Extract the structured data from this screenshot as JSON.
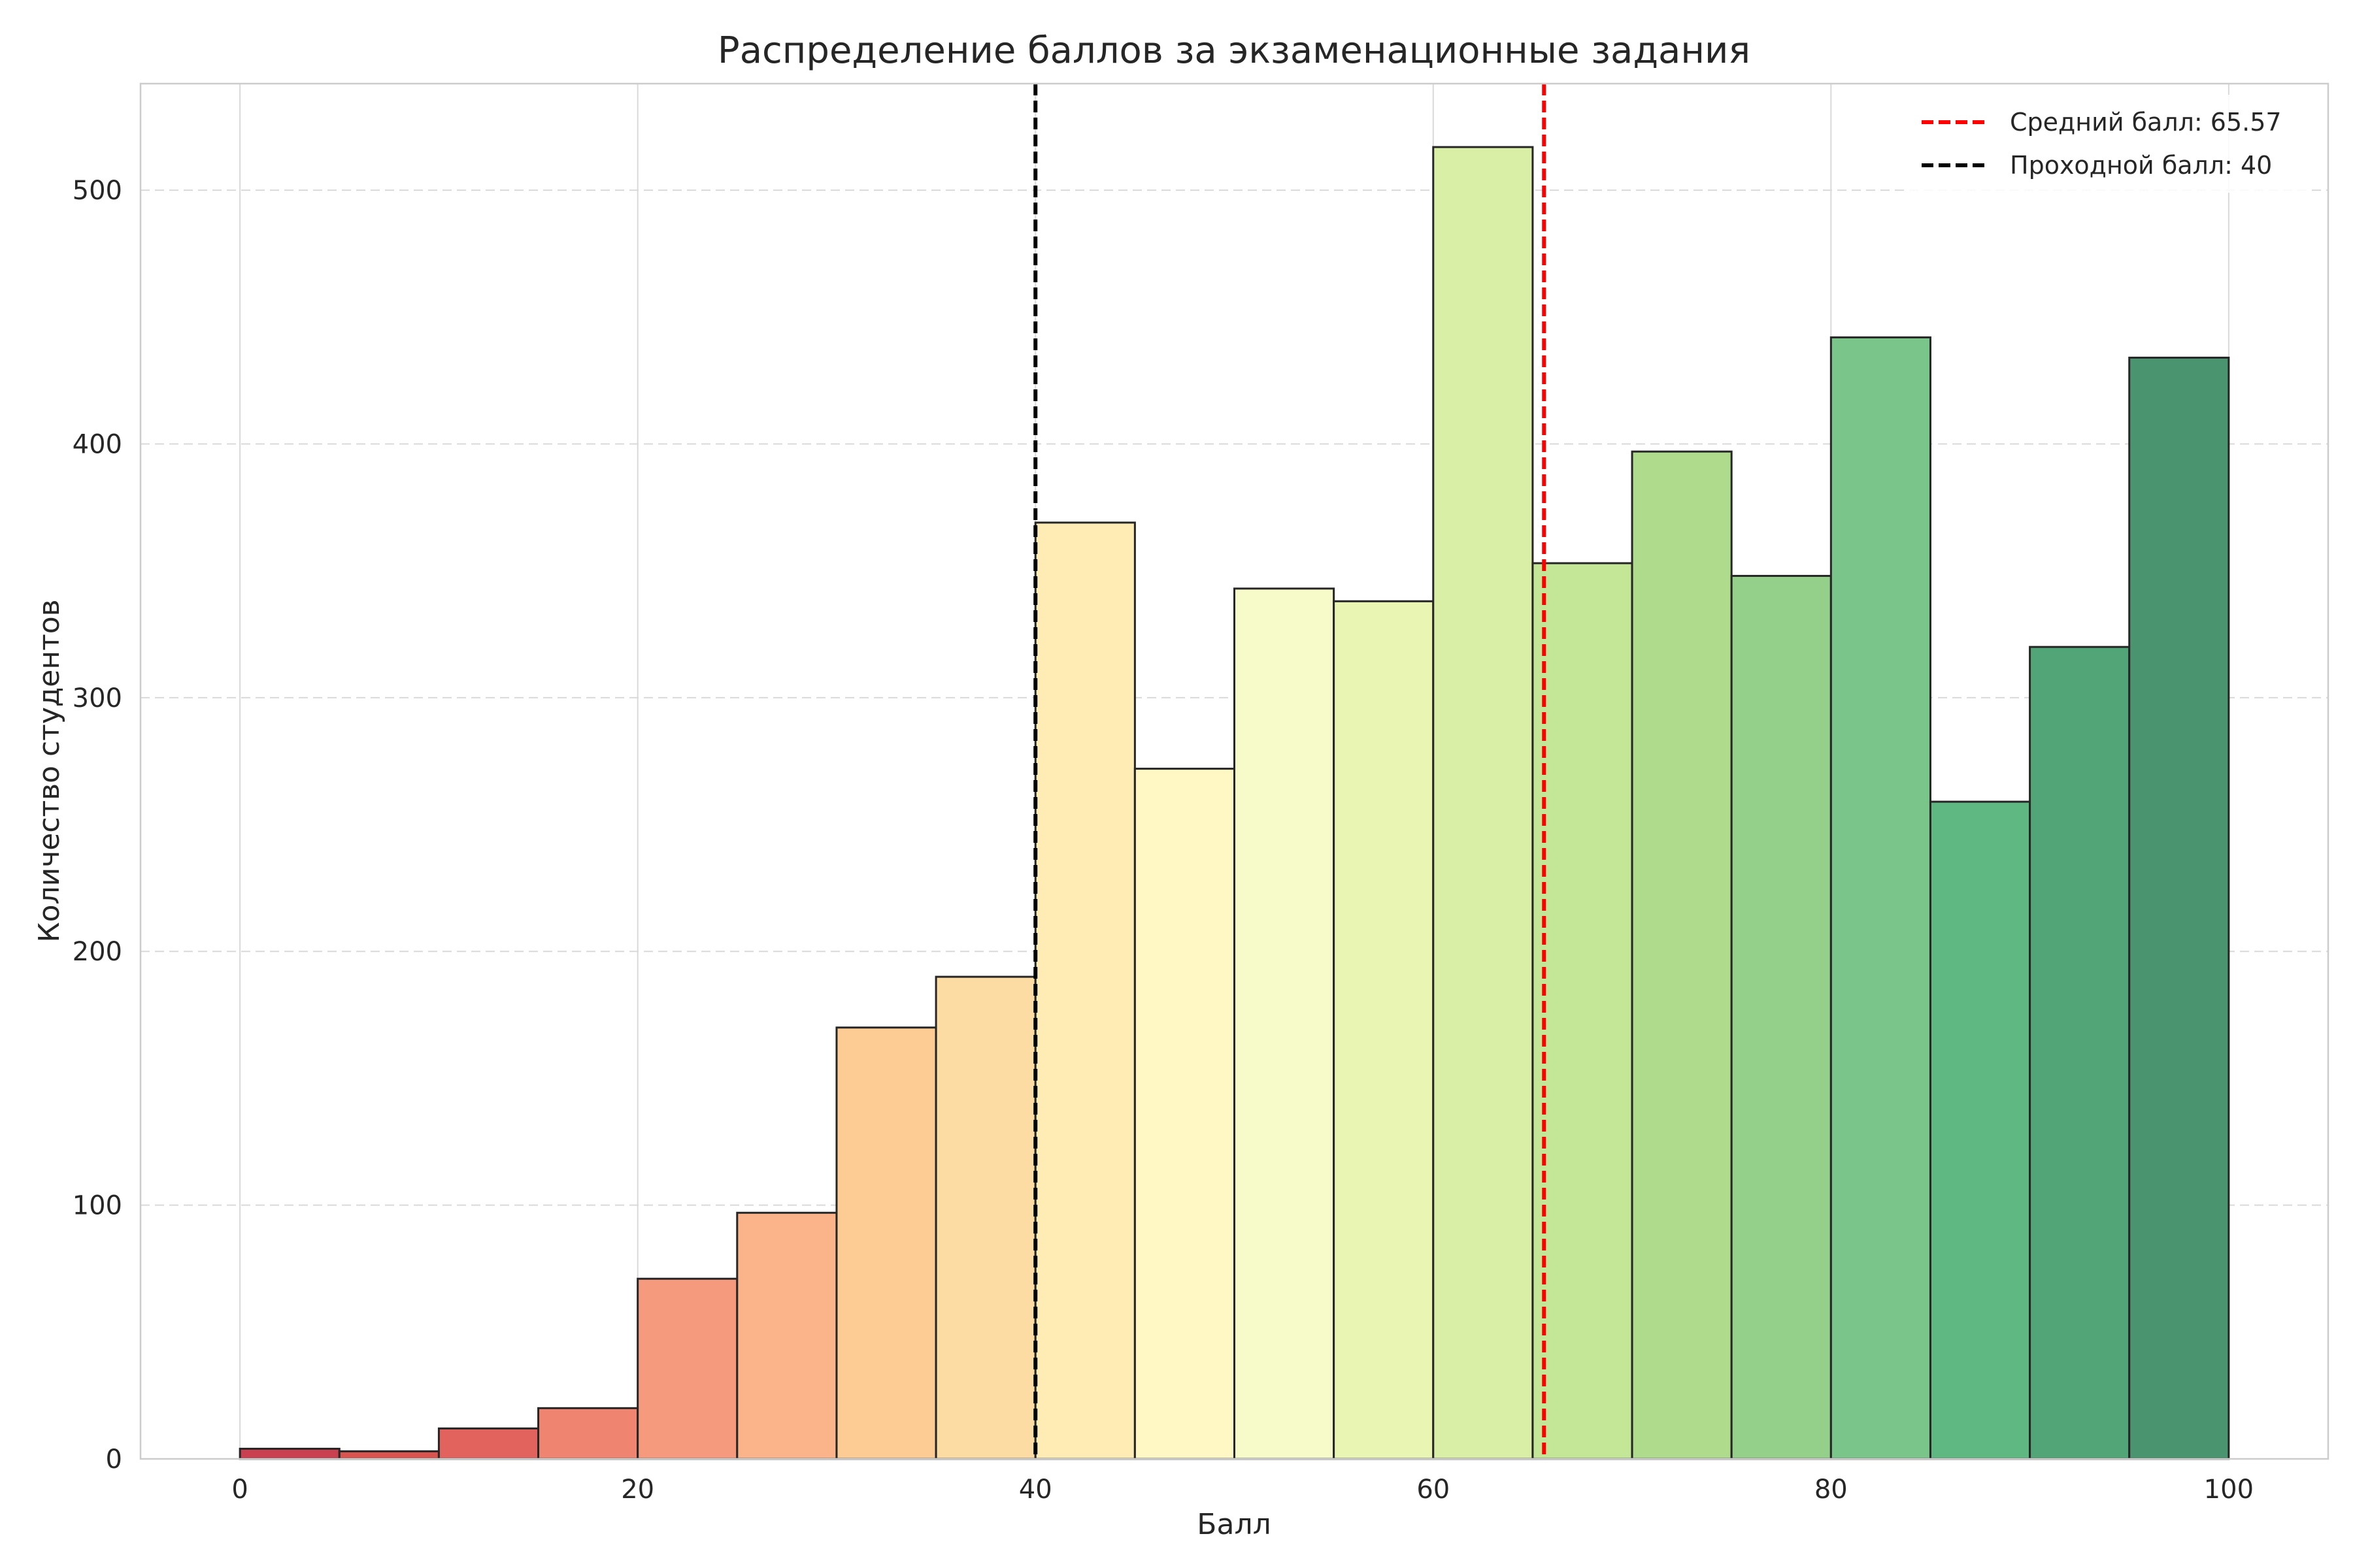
{
  "chart_data": {
    "type": "bar",
    "title": "Распределение баллов за экзаменационные задания",
    "xlabel": "Балл",
    "ylabel": "Количество студентов",
    "xlim": [
      -5,
      105
    ],
    "ylim": [
      0,
      542
    ],
    "x_ticks": [
      0,
      20,
      40,
      60,
      80,
      100
    ],
    "y_ticks": [
      0,
      100,
      200,
      300,
      400,
      500
    ],
    "grid": true,
    "legend_position": "top-right",
    "bins": [
      {
        "start": 0,
        "end": 5,
        "value": 4
      },
      {
        "start": 5,
        "end": 10,
        "value": 3
      },
      {
        "start": 10,
        "end": 15,
        "value": 12
      },
      {
        "start": 15,
        "end": 20,
        "value": 20
      },
      {
        "start": 20,
        "end": 25,
        "value": 71
      },
      {
        "start": 25,
        "end": 30,
        "value": 97
      },
      {
        "start": 30,
        "end": 35,
        "value": 170
      },
      {
        "start": 35,
        "end": 40,
        "value": 190
      },
      {
        "start": 40,
        "end": 45,
        "value": 369
      },
      {
        "start": 45,
        "end": 50,
        "value": 272
      },
      {
        "start": 50,
        "end": 55,
        "value": 343
      },
      {
        "start": 55,
        "end": 60,
        "value": 338
      },
      {
        "start": 60,
        "end": 65,
        "value": 517
      },
      {
        "start": 65,
        "end": 70,
        "value": 353
      },
      {
        "start": 70,
        "end": 75,
        "value": 397
      },
      {
        "start": 75,
        "end": 80,
        "value": 348
      },
      {
        "start": 80,
        "end": 85,
        "value": 442
      },
      {
        "start": 85,
        "end": 90,
        "value": 259
      },
      {
        "start": 90,
        "end": 95,
        "value": 320
      },
      {
        "start": 95,
        "end": 100,
        "value": 434
      }
    ],
    "bar_colors": [
      "#c94050",
      "#d9534f",
      "#e2625e",
      "#ef8471",
      "#f59a7c",
      "#fbb489",
      "#fccc94",
      "#fddca4",
      "#feecb4",
      "#fff7c4",
      "#f7fbc9",
      "#e9f5b2",
      "#d9efa5",
      "#c3e797",
      "#aedc8c",
      "#94d08a",
      "#7ac58a",
      "#5fb882",
      "#52a577",
      "#4a9570"
    ],
    "reference_lines": [
      {
        "label": "Средний балл: 65.57",
        "x": 65.57,
        "color": "#ff0000"
      },
      {
        "label": "Проходной балл: 40",
        "x": 40,
        "color": "#000000"
      }
    ]
  }
}
